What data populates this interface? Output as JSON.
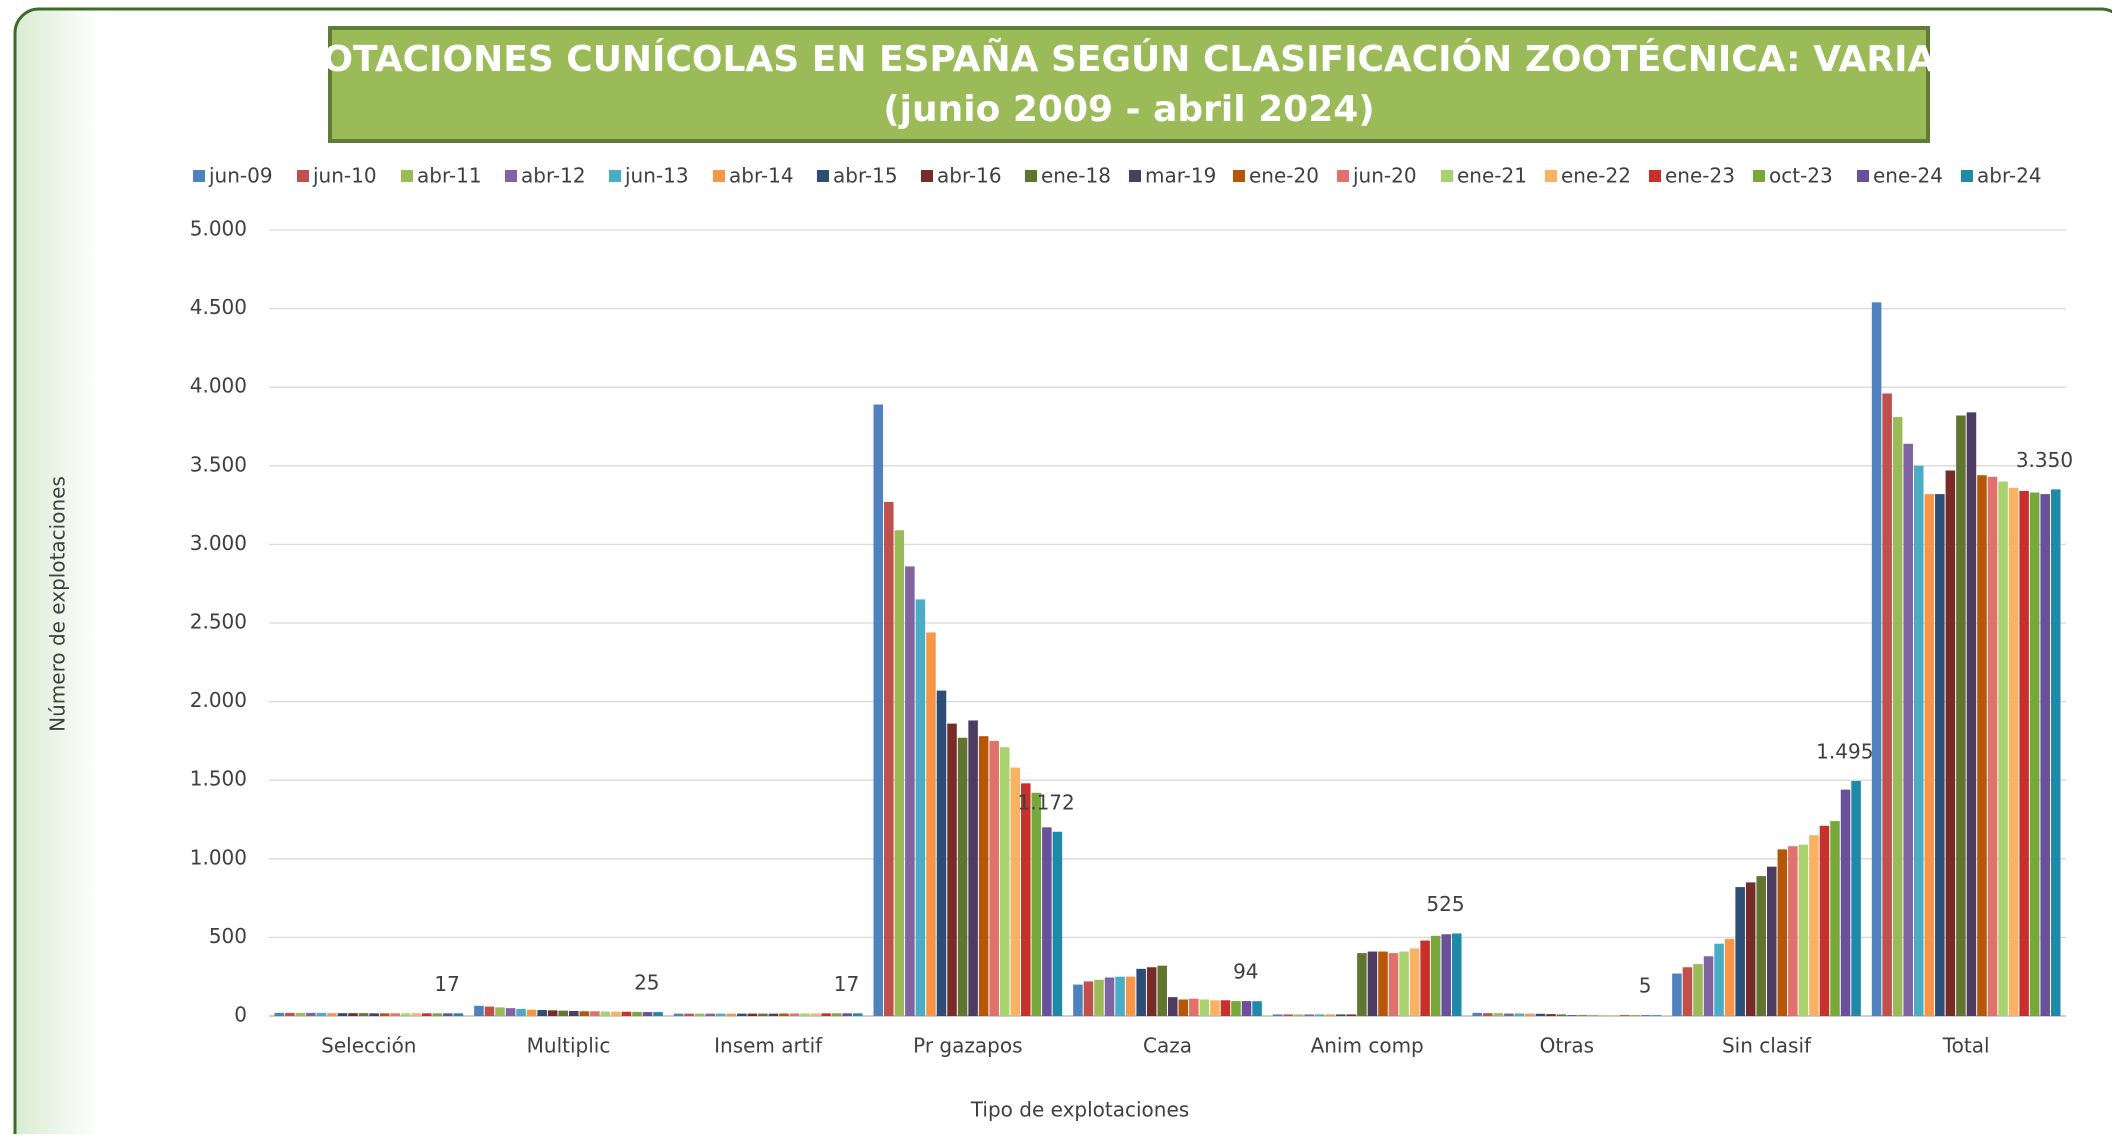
{
  "chart_data": {
    "type": "bar",
    "title": "EXPLOTACIONES CUNÍCOLAS EN ESPAÑA SEGÚN CLASIFICACIÓN ZOOTÉCNICA: VARIACIÓN",
    "subtitle": "(junio 2009 - abril 2024)",
    "x_label": "Tipo de explotaciones",
    "y_label": "Número de explotaciones",
    "categories": [
      "Selección",
      "Multiplic",
      "Insem artif",
      "Pr gazapos",
      "Caza",
      "Anim comp",
      "Otras",
      "Sin clasif",
      "Total"
    ],
    "ylim": [
      0,
      5000
    ],
    "yticks": [
      0,
      500,
      {
        "value": 1000,
        "label": "1.000"
      },
      {
        "value": 1500,
        "label": "1.500"
      },
      {
        "value": 2000,
        "label": "2.000"
      },
      {
        "value": 2500,
        "label": "2.500"
      },
      {
        "value": 3000,
        "label": "3.000"
      },
      {
        "value": 3500,
        "label": "3.500"
      },
      {
        "value": 4000,
        "label": "4.000"
      },
      {
        "value": 4500,
        "label": "4.500"
      },
      {
        "value": 5000,
        "label": "5.000"
      }
    ],
    "grid": true,
    "legend": "top",
    "series": [
      {
        "name": "jun-09",
        "color": "#4f81bd",
        "values": [
          20,
          65,
          15,
          3890,
          200,
          10,
          20,
          270,
          4540
        ]
      },
      {
        "name": "jun-10",
        "color": "#c0504d",
        "values": [
          20,
          60,
          15,
          3270,
          220,
          10,
          18,
          310,
          3960
        ]
      },
      {
        "name": "abr-11",
        "color": "#9bbb59",
        "values": [
          20,
          55,
          15,
          3090,
          230,
          10,
          18,
          330,
          3810
        ]
      },
      {
        "name": "abr-12",
        "color": "#8064a2",
        "values": [
          20,
          50,
          15,
          2860,
          245,
          10,
          16,
          380,
          3640
        ]
      },
      {
        "name": "jun-13",
        "color": "#4bacc6",
        "values": [
          20,
          45,
          15,
          2650,
          250,
          10,
          16,
          460,
          3500
        ]
      },
      {
        "name": "abr-14",
        "color": "#f79646",
        "values": [
          18,
          40,
          15,
          2440,
          250,
          10,
          15,
          490,
          3320
        ]
      },
      {
        "name": "abr-15",
        "color": "#2c4d75",
        "values": [
          18,
          38,
          15,
          2070,
          300,
          10,
          14,
          820,
          3320
        ]
      },
      {
        "name": "abr-16",
        "color": "#772c2a",
        "values": [
          18,
          36,
          15,
          1860,
          310,
          10,
          12,
          850,
          3470
        ]
      },
      {
        "name": "ene-18",
        "color": "#5f7530",
        "values": [
          18,
          34,
          15,
          1770,
          320,
          400,
          10,
          890,
          3820
        ]
      },
      {
        "name": "mar-19",
        "color": "#4d3b62",
        "values": [
          17,
          32,
          15,
          1880,
          120,
          410,
          5,
          950,
          3840
        ]
      },
      {
        "name": "ene-20",
        "color": "#b65708",
        "values": [
          17,
          30,
          16,
          1780,
          105,
          410,
          5,
          1060,
          3440
        ]
      },
      {
        "name": "jun-20",
        "color": "#e0716c",
        "values": [
          17,
          30,
          16,
          1750,
          110,
          400,
          5,
          1080,
          3430
        ]
      },
      {
        "name": "ene-21",
        "color": "#a9d16e",
        "values": [
          17,
          28,
          16,
          1710,
          105,
          410,
          5,
          1090,
          3400
        ]
      },
      {
        "name": "ene-22",
        "color": "#f9b264",
        "values": [
          17,
          28,
          16,
          1580,
          100,
          430,
          5,
          1150,
          3360
        ]
      },
      {
        "name": "ene-23",
        "color": "#c8302c",
        "values": [
          17,
          27,
          17,
          1480,
          100,
          480,
          5,
          1210,
          3340
        ]
      },
      {
        "name": "oct-23",
        "color": "#77a83a",
        "values": [
          17,
          26,
          17,
          1420,
          95,
          510,
          5,
          1240,
          3330
        ]
      },
      {
        "name": "ene-24",
        "color": "#6a4f9a",
        "values": [
          17,
          25,
          17,
          1200,
          95,
          520,
          5,
          1440,
          3320
        ]
      },
      {
        "name": "abr-24",
        "color": "#1f8aa8",
        "values": [
          17,
          25,
          17,
          1172,
          94,
          525,
          5,
          1495,
          3350
        ],
        "value_labels": [
          "17",
          "25",
          "17",
          "1.172",
          "94",
          "525",
          "5",
          "1.495",
          "3.350"
        ]
      }
    ]
  }
}
